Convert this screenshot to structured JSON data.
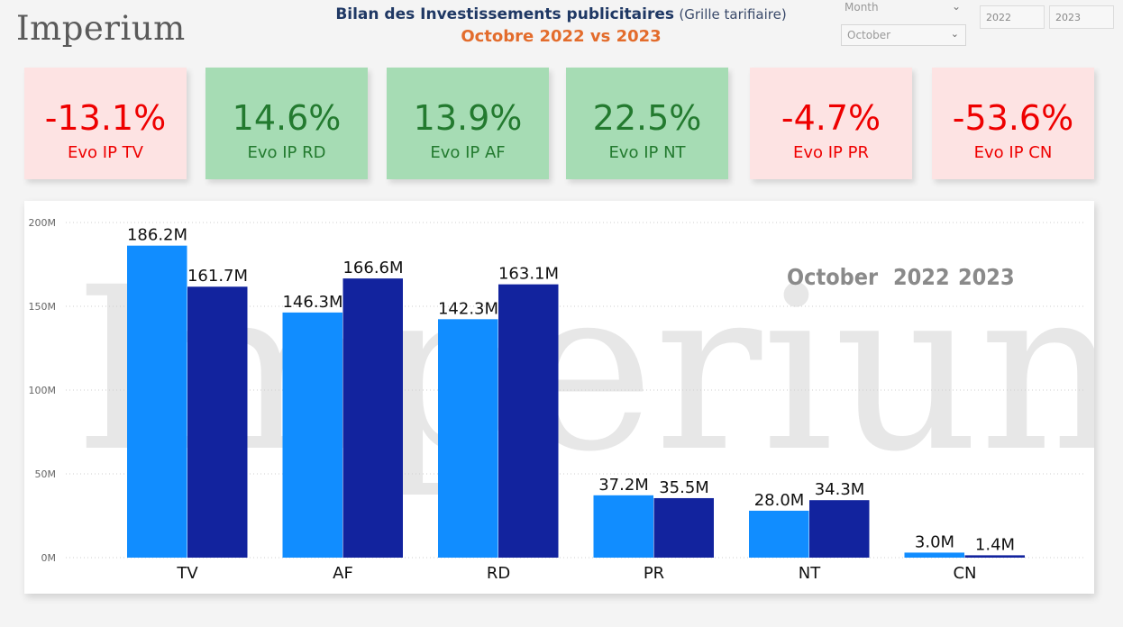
{
  "header": {
    "logo": "Imperium",
    "title_bold": "Bilan des Investissements publicitaires",
    "title_light": "(Grille tarifiaire)",
    "subtitle": "Octobre 2022 vs 2023"
  },
  "slicers": {
    "month_label": "Month",
    "month_value": "October",
    "year_a": "2022",
    "year_b": "2023"
  },
  "kpis": [
    {
      "value": "-13.1%",
      "label": "Evo IP TV",
      "status": "negative"
    },
    {
      "value": "14.6%",
      "label": "Evo IP RD",
      "status": "positive"
    },
    {
      "value": "13.9%",
      "label": "Evo IP AF",
      "status": "positive"
    },
    {
      "value": "22.5%",
      "label": "Evo IP NT",
      "status": "positive"
    },
    {
      "value": "-4.7%",
      "label": "Evo IP PR",
      "status": "negative"
    },
    {
      "value": "-53.6%",
      "label": "Evo IP CN",
      "status": "negative"
    }
  ],
  "colors": {
    "series_2022": "#118dff",
    "series_2023": "#12239e",
    "positive_bg": "#a6dcb4",
    "negative_bg": "#fde3e3"
  },
  "chart_data": {
    "type": "bar",
    "categories": [
      "TV",
      "AF",
      "RD",
      "PR",
      "NT",
      "CN"
    ],
    "series": [
      {
        "name": "2022",
        "values": [
          186.2,
          146.3,
          142.3,
          37.2,
          28.0,
          3.0
        ]
      },
      {
        "name": "2023",
        "values": [
          161.7,
          166.6,
          163.1,
          35.5,
          34.3,
          1.4
        ]
      }
    ],
    "data_labels": [
      [
        "186.2M",
        "146.3M",
        "142.3M",
        "37.2M",
        "28.0M",
        "3.0M"
      ],
      [
        "161.7M",
        "166.6M",
        "163.1M",
        "35.5M",
        "34.3M",
        "1.4M"
      ]
    ],
    "yticks": [
      "0M",
      "50M",
      "100M",
      "150M",
      "200M"
    ],
    "ylim": [
      0,
      200
    ],
    "grid": true,
    "legend": {
      "month": "October",
      "labels": [
        "2022",
        "2023"
      ],
      "placement": "top-right"
    },
    "watermark": "Imperium"
  }
}
